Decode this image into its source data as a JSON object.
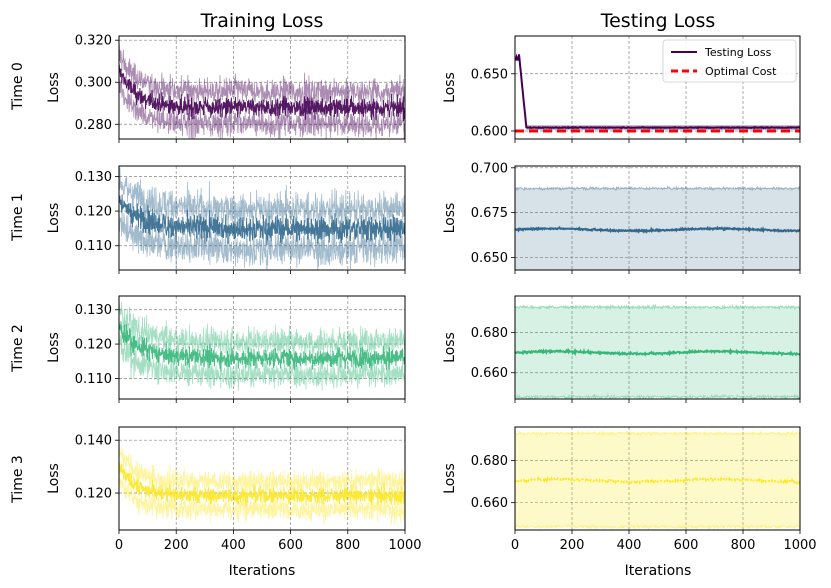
{
  "chart_data": {
    "type": "line",
    "layout": "4x2 grid",
    "column_titles": [
      "Training Loss",
      "Testing Loss"
    ],
    "row_labels": [
      "Time 0",
      "Time 1",
      "Time 2",
      "Time 3"
    ],
    "ylabel": "Loss",
    "xlabel": "Iterations",
    "xlim": [
      0,
      1000
    ],
    "xticks": [
      0,
      200,
      400,
      600,
      800,
      1000
    ],
    "grid": true,
    "colors": [
      "#440154",
      "#31688e",
      "#35b779",
      "#fde725"
    ],
    "optimal_color": "#ff0000",
    "panels": [
      {
        "column": "train",
        "row": 0,
        "ylim": [
          0.273,
          0.322
        ],
        "yticks": [
          0.28,
          0.3,
          0.32
        ],
        "ytick_labels": [
          "0.280",
          "0.300",
          "0.320"
        ],
        "series": {
          "start": 0.306,
          "end": 0.288,
          "decay": 60,
          "mean_noise": 0.0045,
          "band": 0.008
        }
      },
      {
        "column": "train",
        "row": 1,
        "ylim": [
          0.103,
          0.133
        ],
        "yticks": [
          0.11,
          0.12,
          0.13
        ],
        "ytick_labels": [
          "0.110",
          "0.120",
          "0.130"
        ],
        "series": {
          "start": 0.123,
          "end": 0.115,
          "decay": 80,
          "mean_noise": 0.0035,
          "band": 0.006
        }
      },
      {
        "column": "train",
        "row": 2,
        "ylim": [
          0.104,
          0.134
        ],
        "yticks": [
          0.11,
          0.12,
          0.13
        ],
        "ytick_labels": [
          "0.110",
          "0.120",
          "0.130"
        ],
        "series": {
          "start": 0.125,
          "end": 0.116,
          "decay": 70,
          "mean_noise": 0.0028,
          "band": 0.005
        }
      },
      {
        "column": "train",
        "row": 3,
        "ylim": [
          0.106,
          0.145
        ],
        "yticks": [
          0.12,
          0.14
        ],
        "ytick_labels": [
          "0.120",
          "0.140"
        ],
        "series": {
          "start": 0.13,
          "end": 0.119,
          "decay": 60,
          "mean_noise": 0.003,
          "band": 0.0055
        }
      },
      {
        "column": "test",
        "row": 0,
        "ylim": [
          0.593,
          0.683
        ],
        "yticks": [
          0.6,
          0.65
        ],
        "ytick_labels": [
          "0.600",
          "0.650"
        ],
        "series": {
          "initial_peak": 0.667,
          "drop_by": 40,
          "plateau": 0.603,
          "band": 0.002
        },
        "optimal": 0.6,
        "legend": {
          "position": "top-right",
          "entries": [
            "Testing Loss",
            "Optimal Cost"
          ]
        }
      },
      {
        "column": "test",
        "row": 1,
        "ylim": [
          0.643,
          0.701
        ],
        "yticks": [
          0.65,
          0.675,
          0.7
        ],
        "ytick_labels": [
          "0.650",
          "0.675",
          "0.700"
        ],
        "series": {
          "mean": 0.6655,
          "upper": 0.6885,
          "lower": 0.6415
        }
      },
      {
        "column": "test",
        "row": 2,
        "ylim": [
          0.647,
          0.698
        ],
        "yticks": [
          0.66,
          0.68
        ],
        "ytick_labels": [
          "0.660",
          "0.680"
        ],
        "series": {
          "mean": 0.67,
          "upper": 0.6925,
          "lower": 0.648
        }
      },
      {
        "column": "test",
        "row": 3,
        "ylim": [
          0.647,
          0.696
        ],
        "yticks": [
          0.66,
          0.68
        ],
        "ytick_labels": [
          "0.660",
          "0.680"
        ],
        "series": {
          "mean": 0.6705,
          "upper": 0.693,
          "lower": 0.6485
        }
      }
    ]
  }
}
